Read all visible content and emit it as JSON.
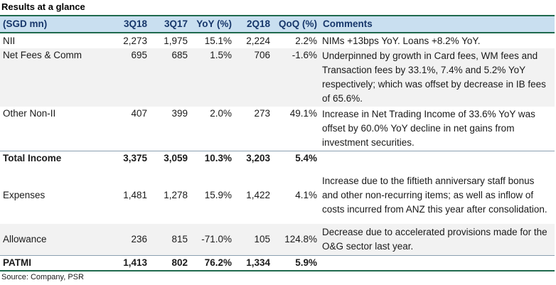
{
  "title": "Results at a glance",
  "headers": [
    "(SGD mn)",
    "3Q18",
    "3Q17",
    "YoY (%)",
    "2Q18",
    "QoQ (%)",
    "Comments"
  ],
  "rows": [
    {
      "label": "NII",
      "v3q18": "2,273",
      "v3q17": "1,975",
      "yoy": "15.1%",
      "v2q18": "2,224",
      "qoq": "2.2%",
      "comment": "NIMs +13bps YoY. Loans +8.2% YoY."
    },
    {
      "label": "Net Fees & Comm",
      "v3q18": "695",
      "v3q17": "685",
      "yoy": "1.5%",
      "v2q18": "706",
      "qoq": "-1.6%",
      "comment": "Underpinned by growth in Card fees, WM fees and Transaction fees by 33.1%, 7.4% and 5.2% YoY respectively; which was offset by decrease in IB fees of 65.6%."
    },
    {
      "label": "Other Non-II",
      "v3q18": "407",
      "v3q17": "399",
      "yoy": "2.0%",
      "v2q18": "273",
      "qoq": "49.1%",
      "comment": "Increase in Net Trading Income of 33.6% YoY was offset by 60.0% YoY decline in net gains from investment securities."
    },
    {
      "label": "Total Income",
      "v3q18": "3,375",
      "v3q17": "3,059",
      "yoy": "10.3%",
      "v2q18": "3,203",
      "qoq": "5.4%",
      "comment": ""
    },
    {
      "label": "Expenses",
      "v3q18": "1,481",
      "v3q17": "1,278",
      "yoy": "15.9%",
      "v2q18": "1,422",
      "qoq": "4.1%",
      "comment": "Increase due to the fiftieth anniversary staff bonus and other non-recurring items; as well as inflow of costs incurred from ANZ this year after consolidation."
    },
    {
      "label": "Allowance",
      "v3q18": "236",
      "v3q17": "815",
      "yoy": "-71.0%",
      "v2q18": "105",
      "qoq": "124.8%",
      "comment": "Decrease due to accelerated provisions made for the O&G sector last year."
    },
    {
      "label": "PATMI",
      "v3q18": "1,413",
      "v3q17": "802",
      "yoy": "76.2%",
      "v2q18": "1,334",
      "qoq": "5.9%",
      "comment": ""
    }
  ],
  "source": "Source: Company, PSR"
}
